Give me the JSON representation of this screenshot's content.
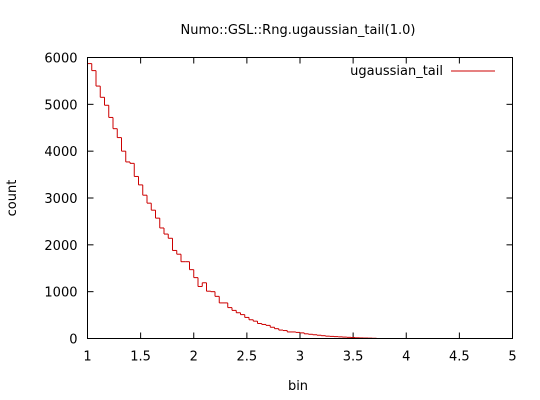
{
  "chart_data": {
    "type": "line",
    "title": "Numo::GSL::Rng.ugaussian_tail(1.0)",
    "xlabel": "bin",
    "ylabel": "count",
    "xlim": [
      1,
      5
    ],
    "ylim": [
      0,
      6000
    ],
    "grid": false,
    "legend_position": "top-right",
    "x_ticks": [
      "1",
      "1.5",
      "2",
      "2.5",
      "3",
      "3.5",
      "4",
      "4.5",
      "5"
    ],
    "y_ticks": [
      "0",
      "1000",
      "2000",
      "3000",
      "4000",
      "5000",
      "6000"
    ],
    "step_style": "histogram",
    "series": [
      {
        "name": "ugaussian_tail",
        "color": "#cc0000",
        "x": [
          1.0,
          1.04,
          1.08,
          1.12,
          1.16,
          1.2,
          1.24,
          1.28,
          1.32,
          1.36,
          1.4,
          1.44,
          1.48,
          1.52,
          1.56,
          1.6,
          1.64,
          1.68,
          1.72,
          1.76,
          1.8,
          1.84,
          1.88,
          1.92,
          1.96,
          2.0,
          2.04,
          2.08,
          2.12,
          2.16,
          2.2,
          2.24,
          2.28,
          2.32,
          2.36,
          2.4,
          2.44,
          2.48,
          2.52,
          2.56,
          2.6,
          2.64,
          2.68,
          2.72,
          2.76,
          2.8,
          2.84,
          2.88,
          2.92,
          2.96,
          3.0,
          3.04,
          3.08,
          3.12,
          3.16,
          3.2,
          3.24,
          3.28,
          3.32,
          3.36,
          3.4,
          3.44,
          3.48,
          3.52,
          3.56,
          3.6,
          3.64,
          3.68,
          3.72
        ],
        "y": [
          5870,
          5720,
          5390,
          5150,
          4980,
          4720,
          4480,
          4290,
          4000,
          3770,
          3740,
          3460,
          3280,
          3060,
          2890,
          2740,
          2570,
          2360,
          2230,
          2140,
          1880,
          1800,
          1640,
          1640,
          1470,
          1300,
          1110,
          1190,
          1010,
          1000,
          900,
          760,
          760,
          660,
          600,
          550,
          510,
          450,
          400,
          370,
          320,
          300,
          280,
          240,
          210,
          180,
          170,
          140,
          140,
          130,
          120,
          100,
          90,
          80,
          70,
          60,
          50,
          45,
          40,
          35,
          30,
          25,
          20,
          15,
          12,
          10,
          8,
          5,
          0
        ]
      }
    ]
  }
}
